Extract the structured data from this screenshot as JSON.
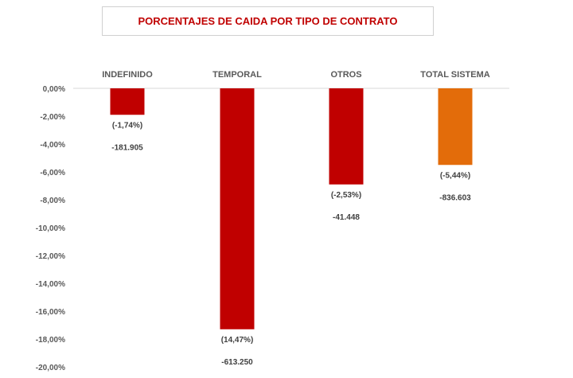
{
  "chart_data": {
    "type": "bar",
    "title": "PORCENTAJES DE CAIDA POR TIPO DE CONTRATO",
    "categories": [
      "INDEFINIDO",
      "TEMPORAL",
      "OTROS",
      "TOTAL SISTEMA"
    ],
    "values": [
      -1.9,
      -17.3,
      -6.9,
      -5.5
    ],
    "percent_labels": [
      "(-1,74%)",
      "(14,47%)",
      "(-2,53%)",
      "(-5,44%)"
    ],
    "count_labels": [
      "-181.905",
      "-613.250",
      "-41.448",
      "-836.603"
    ],
    "colors": [
      "#c00000",
      "#c00000",
      "#c00000",
      "#e36c0a"
    ],
    "ylim": [
      -20,
      0
    ],
    "yticks": [
      "0,00%",
      "-2,00%",
      "-4,00%",
      "-6,00%",
      "-8,00%",
      "-10,00%",
      "-12,00%",
      "-14,00%",
      "-16,00%",
      "-18,00%",
      "-20,00%"
    ],
    "category_position": "top",
    "grid": false,
    "legend": "none"
  }
}
